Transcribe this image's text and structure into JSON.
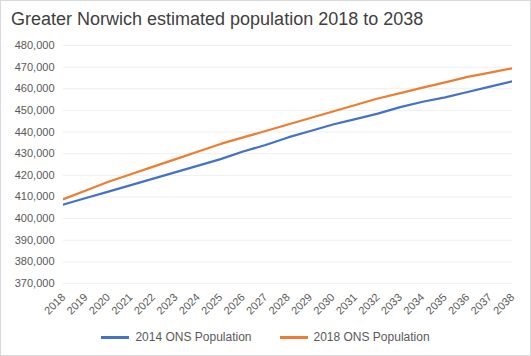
{
  "chart_data": {
    "type": "line",
    "title": "Greater Norwich estimated population 2018 to 2038",
    "x": [
      2018,
      2019,
      2020,
      2021,
      2022,
      2023,
      2024,
      2025,
      2026,
      2027,
      2028,
      2029,
      2030,
      2031,
      2032,
      2033,
      2034,
      2035,
      2036,
      2037,
      2038
    ],
    "series": [
      {
        "name": "2014 ONS Population",
        "color": "#4472c4",
        "values": [
          406500,
          409500,
          412500,
          415500,
          418500,
          421500,
          424500,
          427500,
          431000,
          434000,
          437500,
          440500,
          443500,
          446000,
          448500,
          451500,
          454000,
          456000,
          458500,
          461000,
          463500
        ]
      },
      {
        "name": "2018 ONS Population",
        "color": "#ed7d31",
        "values": [
          409000,
          413000,
          417000,
          420500,
          424000,
          427500,
          431000,
          434500,
          437500,
          440500,
          443500,
          446500,
          449500,
          452500,
          455500,
          458000,
          460500,
          463000,
          465500,
          467500,
          469500
        ]
      }
    ],
    "xlim": [
      2018,
      2038
    ],
    "xticks": [
      2018,
      2019,
      2020,
      2021,
      2022,
      2023,
      2024,
      2025,
      2026,
      2027,
      2028,
      2029,
      2030,
      2031,
      2032,
      2033,
      2034,
      2035,
      2036,
      2037,
      2038
    ],
    "ylim": [
      370000,
      480000
    ],
    "yticks": [
      {
        "value": 370000,
        "label": "370,000"
      },
      {
        "value": 380000,
        "label": "380,000"
      },
      {
        "value": 390000,
        "label": "390,000"
      },
      {
        "value": 400000,
        "label": "400,000"
      },
      {
        "value": 410000,
        "label": "410,000"
      },
      {
        "value": 420000,
        "label": "420,000"
      },
      {
        "value": 430000,
        "label": "430,000"
      },
      {
        "value": 440000,
        "label": "440,000"
      },
      {
        "value": 450000,
        "label": "450,000"
      },
      {
        "value": 460000,
        "label": "460,000"
      },
      {
        "value": 470000,
        "label": "470,000"
      },
      {
        "value": 480000,
        "label": "480,000"
      }
    ],
    "grid": true,
    "legend": "bottom"
  }
}
